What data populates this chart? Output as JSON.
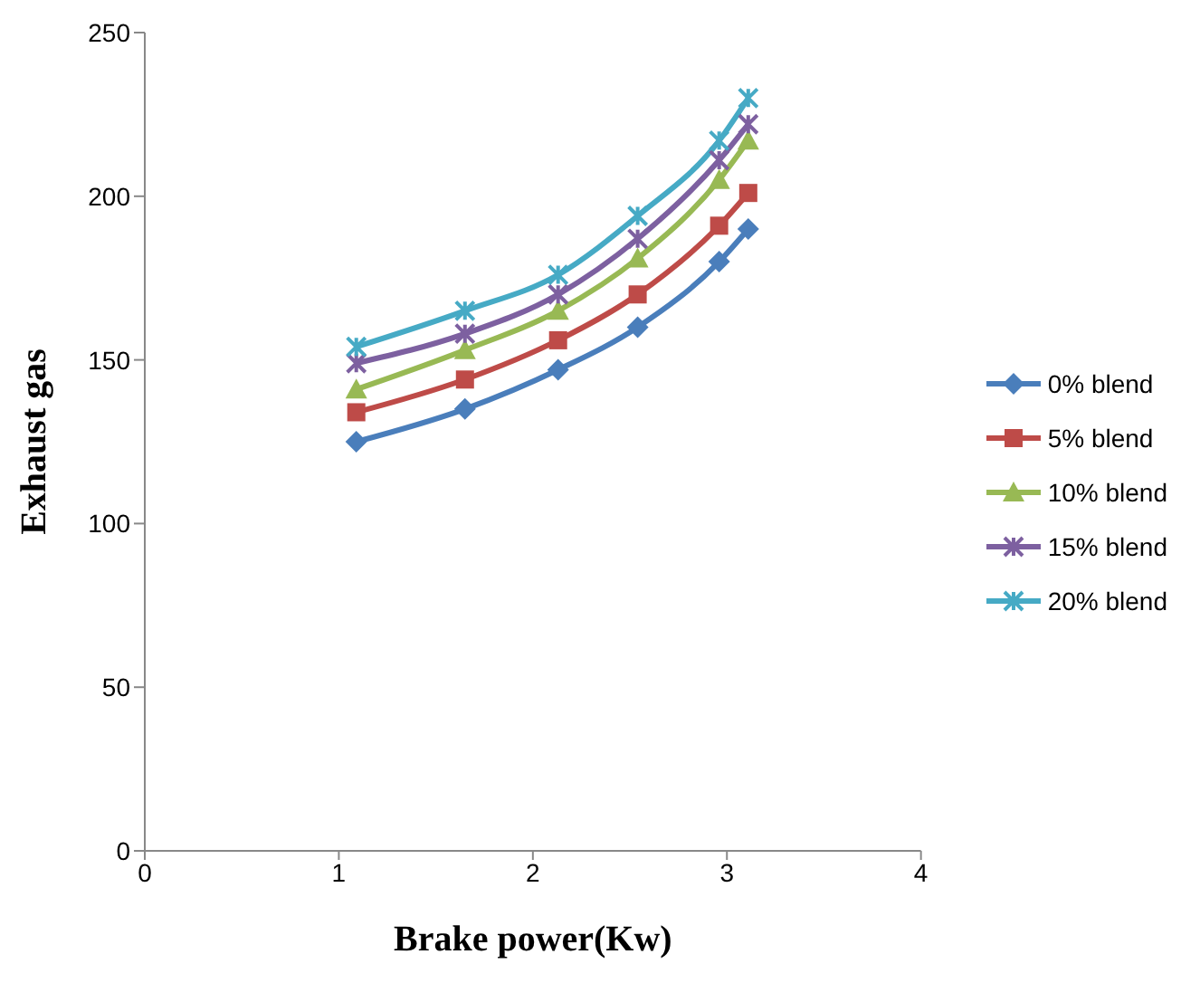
{
  "chart_data": {
    "type": "line",
    "xlabel": "Brake power(Kw)",
    "ylabel": "Exhaust gas",
    "x": [
      1.09,
      1.65,
      2.13,
      2.54,
      2.96,
      3.11
    ],
    "series": [
      {
        "name": "0% blend",
        "color": "#4a7ebb",
        "marker": "diamond",
        "values": [
          125,
          135,
          147,
          160,
          180,
          190
        ]
      },
      {
        "name": "5% blend",
        "color": "#be4b48",
        "marker": "square",
        "values": [
          134,
          144,
          156,
          170,
          191,
          201
        ]
      },
      {
        "name": "10% blend",
        "color": "#98b954",
        "marker": "triangle",
        "values": [
          141,
          153,
          165,
          181,
          205,
          217
        ]
      },
      {
        "name": "15% blend",
        "color": "#7d60a0",
        "marker": "cross",
        "values": [
          149,
          158,
          170,
          187,
          211,
          222
        ]
      },
      {
        "name": "20% blend",
        "color": "#46aac5",
        "marker": "cross",
        "values": [
          154,
          165,
          176,
          194,
          217,
          230
        ]
      }
    ],
    "xlim": [
      0,
      4
    ],
    "xticks": [
      0,
      1,
      2,
      3,
      4
    ],
    "ylim": [
      0,
      250
    ],
    "yticks": [
      0,
      50,
      100,
      150,
      200,
      250
    ],
    "grid": false,
    "legend": "right",
    "line_style": "solid"
  }
}
